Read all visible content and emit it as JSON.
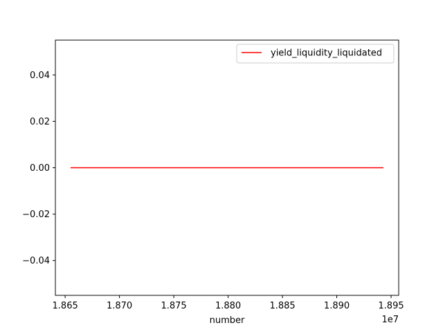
{
  "chart_data": {
    "type": "line",
    "title": "",
    "xlabel": "number",
    "ylabel": "",
    "x_offset_label": "1e7",
    "xlim": [
      1.8641,
      1.8957
    ],
    "ylim": [
      -0.055,
      0.055
    ],
    "x_ticks": [
      1.865,
      1.87,
      1.875,
      1.88,
      1.885,
      1.89,
      1.895
    ],
    "x_tick_labels": [
      "1.865",
      "1.870",
      "1.875",
      "1.880",
      "1.885",
      "1.890",
      "1.895"
    ],
    "y_ticks": [
      -0.04,
      -0.02,
      0.0,
      0.02,
      0.04
    ],
    "y_tick_labels": [
      "−0.04",
      "−0.02",
      "0.00",
      "0.02",
      "0.04"
    ],
    "grid": false,
    "legend_position": "top-right",
    "series": [
      {
        "name": "yield_liquidity_liquidated",
        "color": "#ff0000",
        "x": [
          1.8655,
          1.8943
        ],
        "y": [
          0.0,
          0.0
        ]
      }
    ]
  }
}
